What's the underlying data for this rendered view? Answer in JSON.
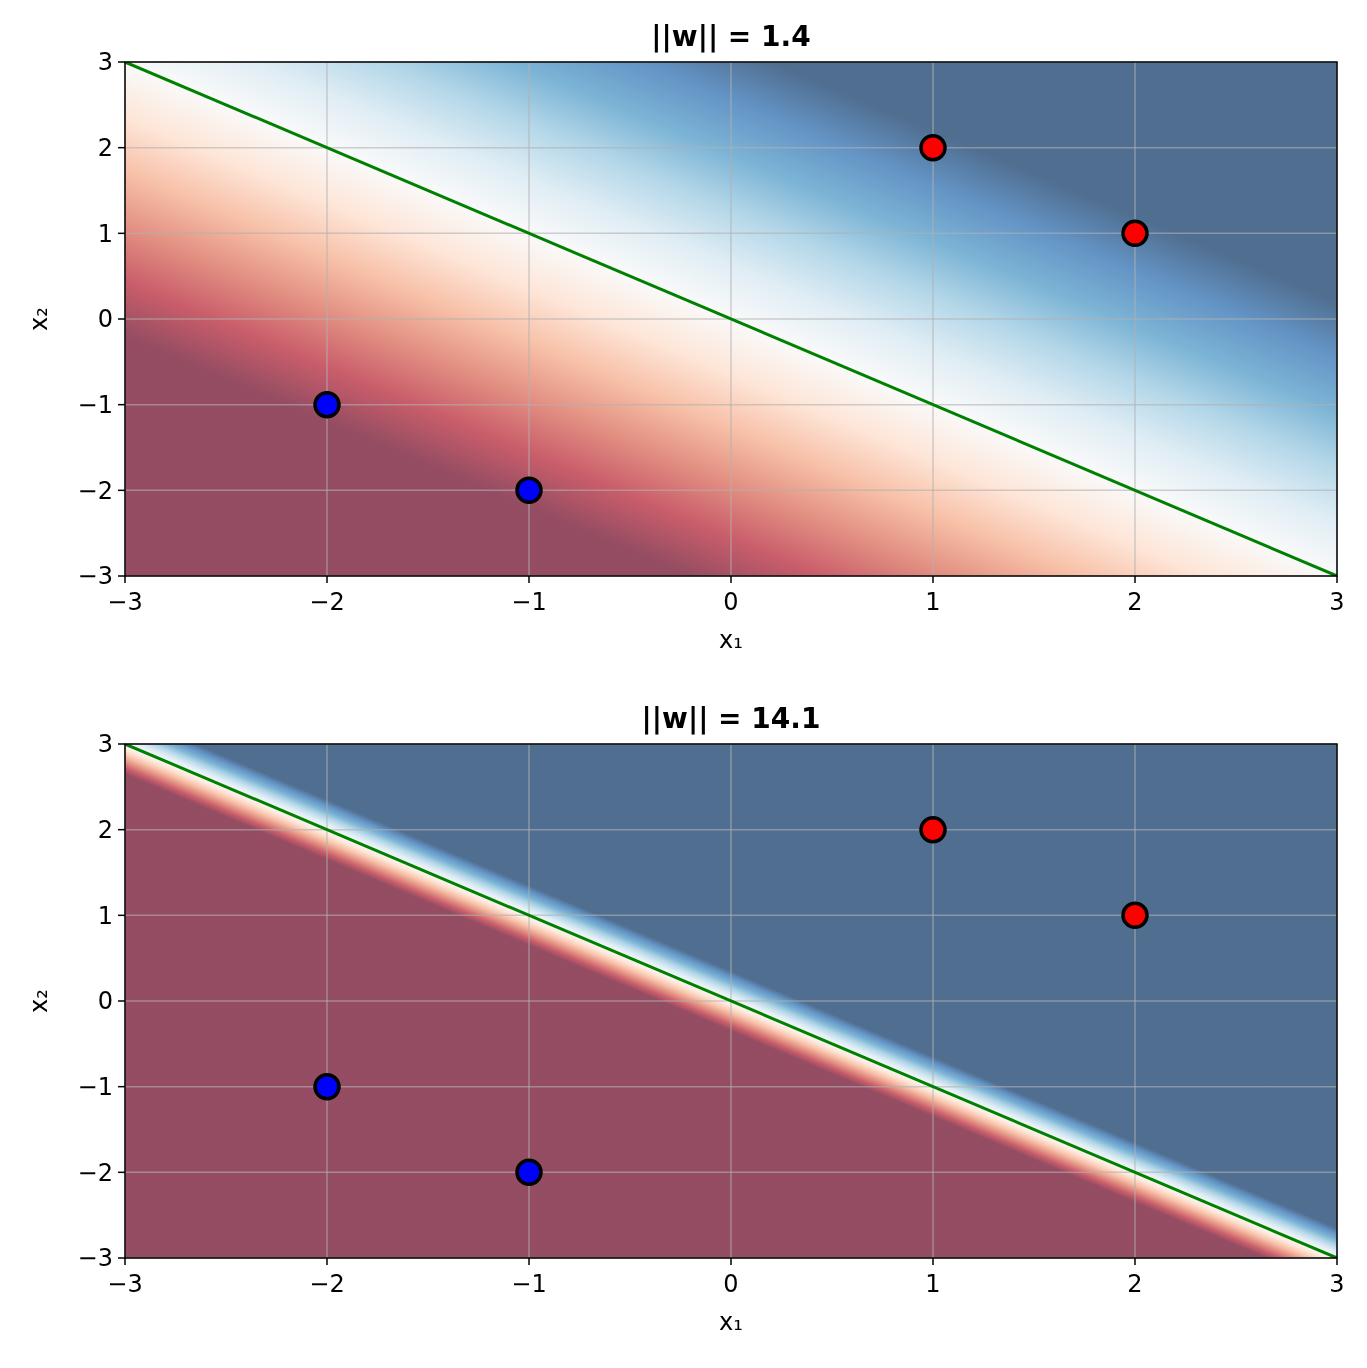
{
  "chart_data": [
    {
      "type": "scatter",
      "title": "||w|| = 1.4",
      "xlabel": "x₁",
      "ylabel": "x₂",
      "xlim": [
        -3,
        3
      ],
      "ylim": [
        -3,
        3
      ],
      "xticks": [
        {
          "value": -3,
          "label": "−3"
        },
        {
          "value": -2,
          "label": "−2"
        },
        {
          "value": -1,
          "label": "−1"
        },
        0,
        1,
        2,
        3
      ],
      "yticks": [
        {
          "value": -3,
          "label": "−3"
        },
        {
          "value": -2,
          "label": "−2"
        },
        {
          "value": -1,
          "label": "−1"
        },
        0,
        1,
        2,
        3
      ],
      "grid": true,
      "marker": "circle",
      "series": [
        {
          "type": "line",
          "color": "#008000",
          "x": [
            -3,
            3
          ],
          "values": [
            3,
            -3
          ],
          "marker": "none"
        },
        {
          "color": "#ff0000",
          "x": [
            1,
            2
          ],
          "values": [
            2,
            1
          ]
        },
        {
          "color": "#0000ff",
          "x": [
            -2,
            -1
          ],
          "values": [
            -1,
            -2
          ]
        }
      ]
    },
    {
      "type": "scatter",
      "title": "||w|| = 14.1",
      "xlabel": "x₁",
      "ylabel": "x₂",
      "xlim": [
        -3,
        3
      ],
      "ylim": [
        -3,
        3
      ],
      "xticks": [
        {
          "value": -3,
          "label": "−3"
        },
        {
          "value": -2,
          "label": "−2"
        },
        {
          "value": -1,
          "label": "−1"
        },
        0,
        1,
        2,
        3
      ],
      "yticks": [
        {
          "value": -3,
          "label": "−3"
        },
        {
          "value": -2,
          "label": "−2"
        },
        {
          "value": -1,
          "label": "−1"
        },
        0,
        1,
        2,
        3
      ],
      "grid": true,
      "marker": "circle",
      "series": [
        {
          "type": "line",
          "color": "#008000",
          "x": [
            -3,
            3
          ],
          "values": [
            3,
            -3
          ],
          "marker": "none"
        },
        {
          "color": "#ff0000",
          "x": [
            1,
            2
          ],
          "values": [
            2,
            1
          ]
        },
        {
          "color": "#0000ff",
          "x": [
            -2,
            -1
          ],
          "values": [
            -1,
            -2
          ]
        }
      ]
    }
  ]
}
